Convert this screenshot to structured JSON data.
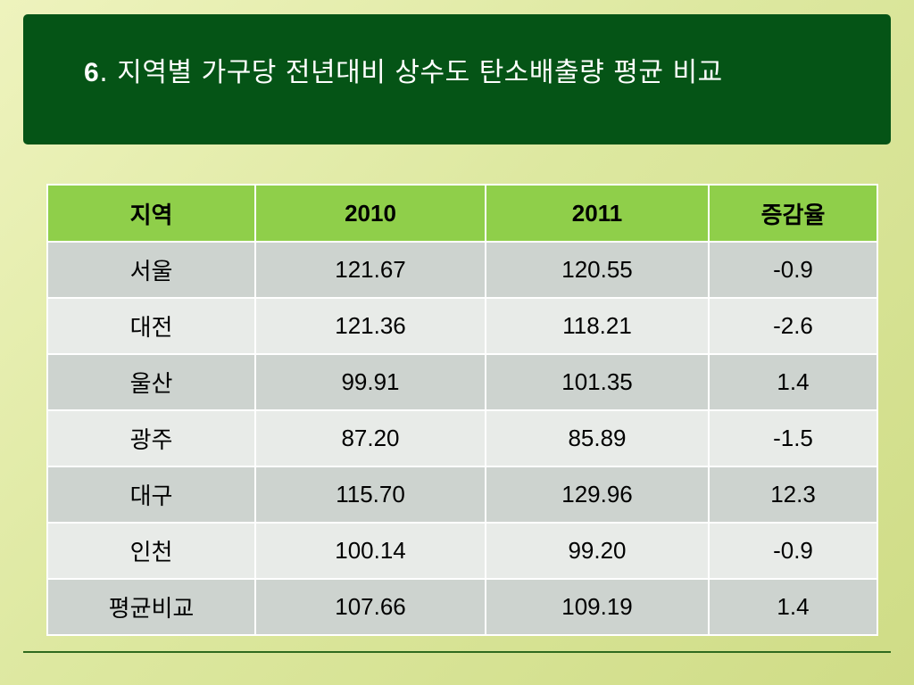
{
  "title": {
    "number": "6",
    "text": ". 지역별 가구당 전년대비 상수도 탄소배출량 평균 비교"
  },
  "table": {
    "headers": [
      "지역",
      "2010",
      "2011",
      "증감율"
    ],
    "rows": [
      [
        "서울",
        "121.67",
        "120.55",
        "-0.9"
      ],
      [
        "대전",
        "121.36",
        "118.21",
        "-2.6"
      ],
      [
        "울산",
        "99.91",
        "101.35",
        "1.4"
      ],
      [
        "광주",
        "87.20",
        "85.89",
        "-1.5"
      ],
      [
        "대구",
        "115.70",
        "129.96",
        "12.3"
      ],
      [
        "인천",
        "100.14",
        "99.20",
        "-0.9"
      ],
      [
        "평균비교",
        "107.66",
        "109.19",
        "1.4"
      ]
    ]
  },
  "colors": {
    "title_bar": "#055416",
    "header_row": "#8fcf4a",
    "row_dark": "#cdd3cf",
    "row_light": "#e8ebe8"
  }
}
